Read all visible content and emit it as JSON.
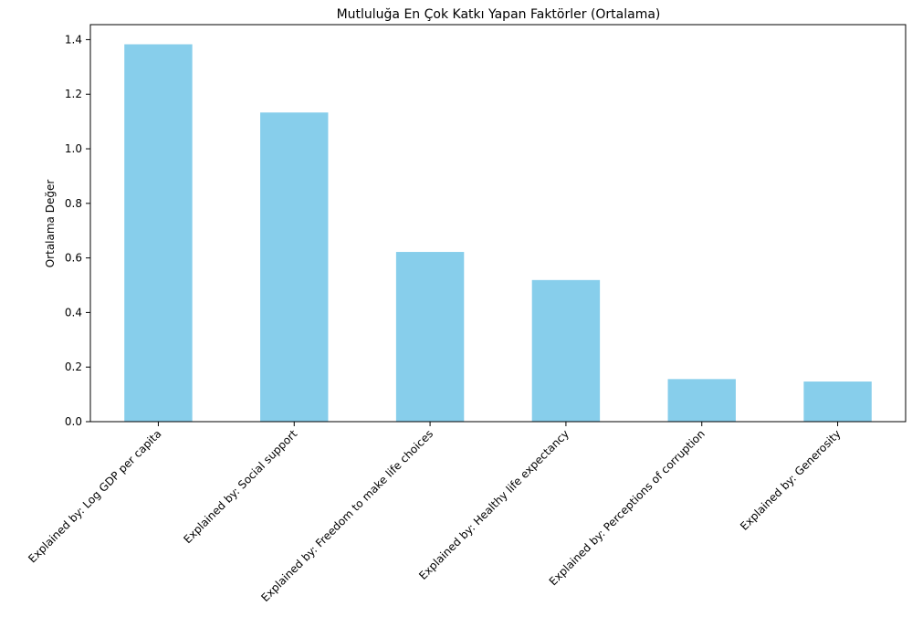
{
  "chart_data": {
    "type": "bar",
    "title": "Mutluluğa En Çok Katkı Yapan Faktörler (Ortalama)",
    "xlabel": "",
    "ylabel": "Ortalama Değer",
    "categories": [
      "Explained by: Log GDP per capita",
      "Explained by: Social support",
      "Explained by: Freedom to make life choices",
      "Explained by: Healthy life expectancy",
      "Explained by: Perceptions of corruption",
      "Explained by: Generosity"
    ],
    "values": [
      1.383,
      1.133,
      0.622,
      0.519,
      0.156,
      0.147
    ],
    "ylim": [
      0,
      1.455
    ],
    "yticks": [
      "0.0",
      "0.2",
      "0.4",
      "0.6",
      "0.8",
      "1.0",
      "1.2",
      "1.4"
    ],
    "bar_color": "#87ceeb",
    "grid": false,
    "legend": "none"
  }
}
